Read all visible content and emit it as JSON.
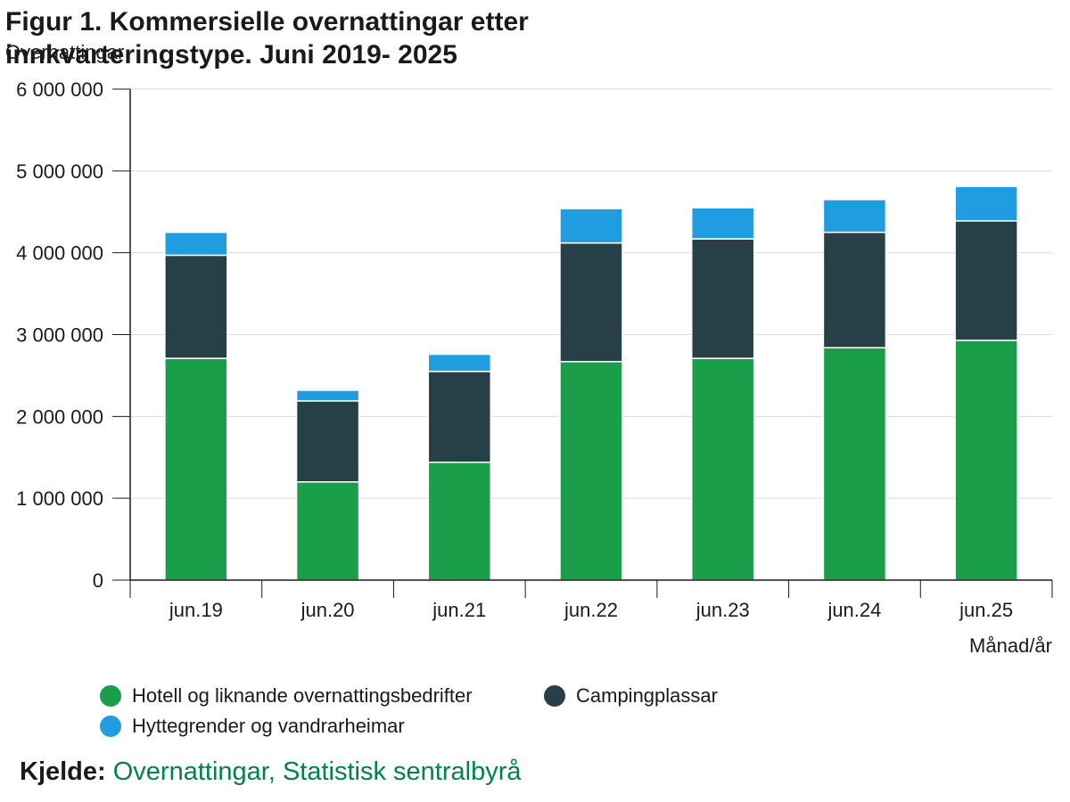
{
  "chart_data": {
    "type": "bar",
    "stacked": true,
    "title": "Figur 1. Kommersielle overnattingar etter innkvarteringstype. Juni 2019- 2025",
    "ylabel": "Overnattingar",
    "xlabel": "Månad/år",
    "categories": [
      "jun.19",
      "jun.20",
      "jun.21",
      "jun.22",
      "jun.23",
      "jun.24",
      "jun.25"
    ],
    "ylim": [
      0,
      6000000
    ],
    "yticks": [
      0,
      1000000,
      2000000,
      3000000,
      4000000,
      5000000,
      6000000
    ],
    "ytick_labels": [
      "0",
      "1 000 000",
      "2 000 000",
      "3 000 000",
      "4 000 000",
      "5 000 000",
      "6 000 000"
    ],
    "grid": true,
    "legend_position": "bottom",
    "series": [
      {
        "name": "Hotell og liknande overnattingsbedrifter",
        "color": "#1a9e4a",
        "values": [
          2710000,
          1200000,
          1440000,
          2670000,
          2710000,
          2840000,
          2930000
        ]
      },
      {
        "name": "Campingplassar",
        "color": "#274048",
        "values": [
          1260000,
          990000,
          1110000,
          1450000,
          1460000,
          1410000,
          1460000
        ]
      },
      {
        "name": "Hyttegrender og vandrarheimar",
        "color": "#1f9de0",
        "values": [
          280000,
          130000,
          210000,
          420000,
          380000,
          400000,
          420000
        ]
      }
    ]
  },
  "source": {
    "label": "Kjelde:",
    "link_text": "Overnattingar, Statistisk sentralbyrå"
  }
}
